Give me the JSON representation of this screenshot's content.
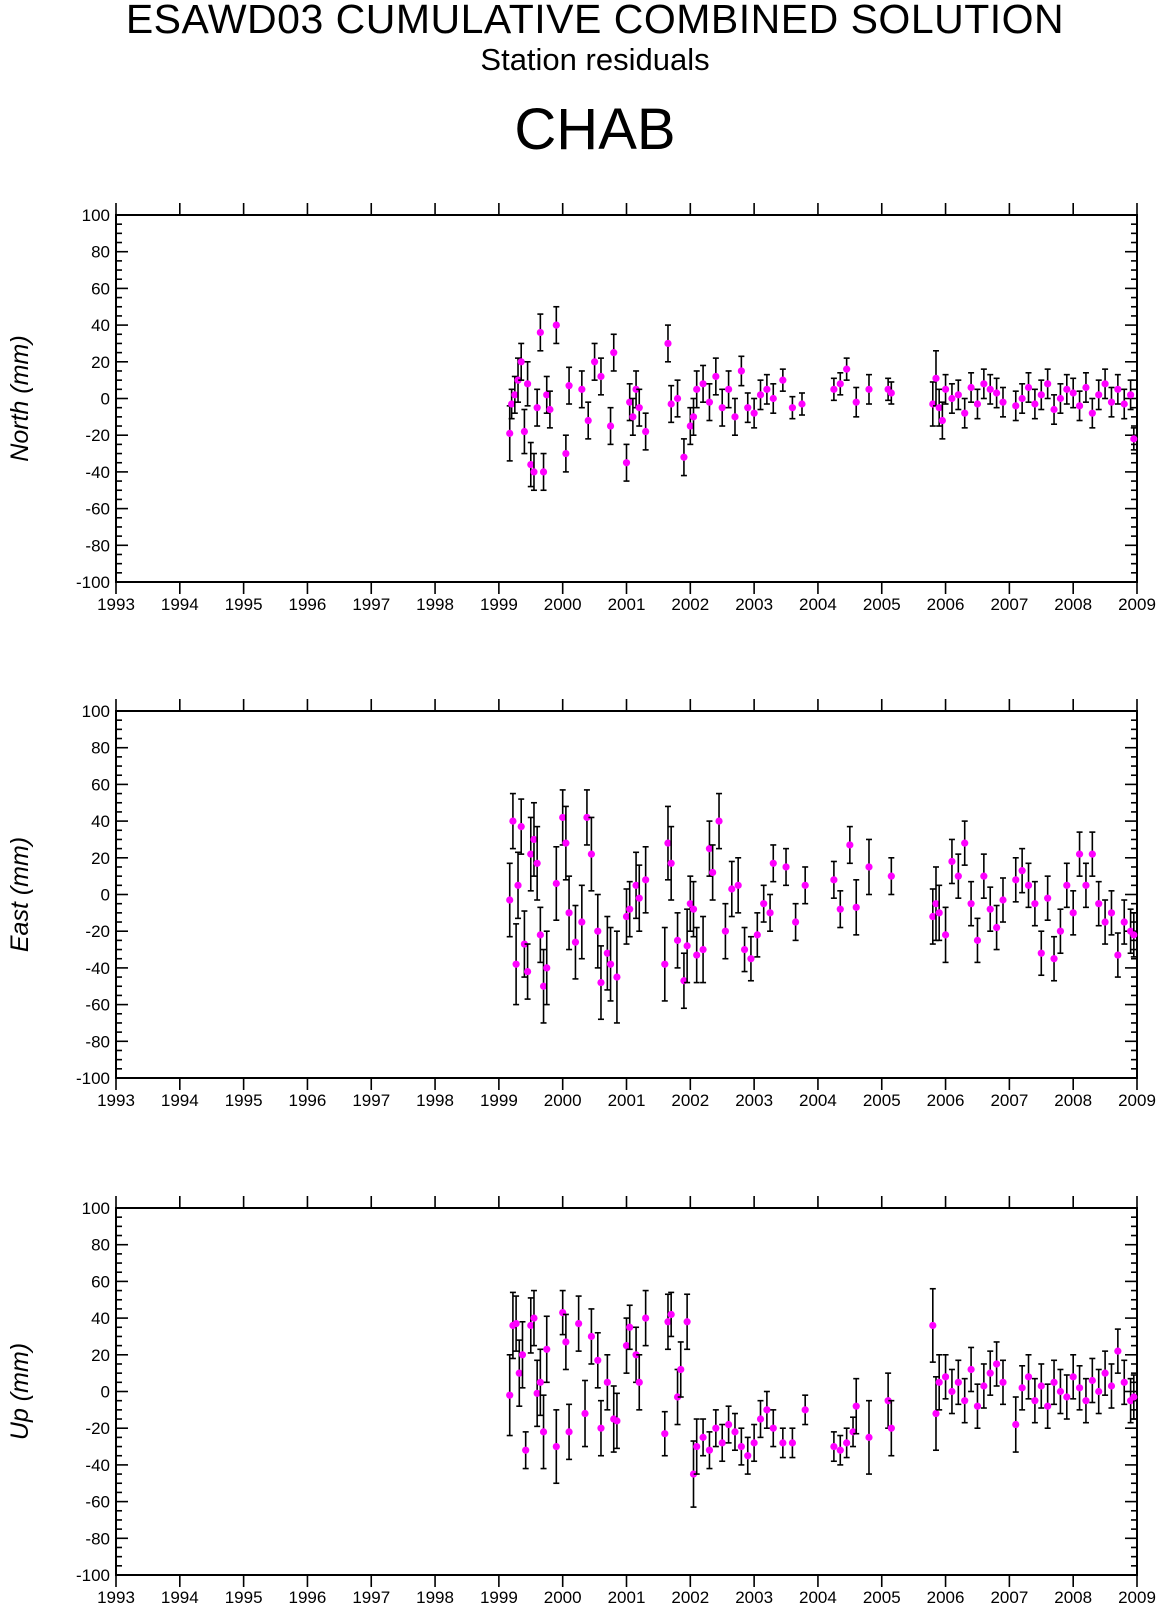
{
  "header": {
    "title": "ESAWD03 CUMULATIVE COMBINED SOLUTION",
    "subtitle": "Station residuals",
    "station": "CHAB"
  },
  "colors": {
    "marker": "#ff00ff",
    "errorbar": "#000000",
    "axis": "#000000"
  },
  "chart_data": [
    {
      "type": "scatter",
      "ylabel": "North (mm)",
      "xlim": [
        1993,
        2009
      ],
      "ylim": [
        -100,
        100
      ],
      "xticks": [
        "1993",
        "1994",
        "1995",
        "1996",
        "1997",
        "1998",
        "1999",
        "2000",
        "2001",
        "2002",
        "2003",
        "2004",
        "2005",
        "2006",
        "2007",
        "2008",
        "2009"
      ],
      "yticks": [
        "100",
        "80",
        "60",
        "40",
        "20",
        "0",
        "-20",
        "-40",
        "-60",
        "-80",
        "-100"
      ],
      "error_bars": true,
      "series": [
        {
          "x": [
            1999.17,
            1999.2,
            1999.25,
            1999.3,
            1999.35,
            1999.4,
            1999.45,
            1999.5,
            1999.55,
            1999.6,
            1999.65,
            1999.7,
            1999.75,
            1999.8,
            1999.9,
            2000.05,
            2000.1,
            2000.3,
            2000.4,
            2000.5,
            2000.6,
            2000.75,
            2000.8,
            2001.0,
            2001.05,
            2001.1,
            2001.15,
            2001.2,
            2001.3,
            2001.65,
            2001.7,
            2001.8,
            2001.9,
            2002.0,
            2002.05,
            2002.1,
            2002.2,
            2002.3,
            2002.4,
            2002.5,
            2002.6,
            2002.7,
            2002.8,
            2002.9,
            2003.0,
            2003.1,
            2003.2,
            2003.3,
            2003.45,
            2003.6,
            2003.75,
            2004.25,
            2004.35,
            2004.45,
            2004.6,
            2004.8,
            2005.1,
            2005.15,
            2005.8,
            2005.85,
            2005.9,
            2005.95,
            2006.0,
            2006.1,
            2006.2,
            2006.3,
            2006.4,
            2006.5,
            2006.6,
            2006.7,
            2006.8,
            2006.9,
            2007.1,
            2007.2,
            2007.3,
            2007.4,
            2007.5,
            2007.6,
            2007.7,
            2007.8,
            2007.9,
            2008.0,
            2008.1,
            2008.2,
            2008.3,
            2008.4,
            2008.5,
            2008.6,
            2008.7,
            2008.8,
            2008.9,
            2008.95
          ],
          "y": [
            -19,
            -3,
            2,
            10,
            20,
            -18,
            8,
            -36,
            -40,
            -5,
            36,
            -40,
            2,
            -6,
            40,
            -30,
            7,
            5,
            -12,
            20,
            12,
            -15,
            25,
            -35,
            -2,
            -10,
            5,
            -5,
            -18,
            30,
            -3,
            0,
            -32,
            -15,
            -10,
            5,
            8,
            -2,
            12,
            -5,
            5,
            -10,
            15,
            -5,
            -8,
            2,
            5,
            0,
            10,
            -5,
            -3,
            5,
            8,
            16,
            -2,
            5,
            5,
            3,
            -3,
            11,
            -5,
            -12,
            5,
            0,
            2,
            -8,
            6,
            -3,
            8,
            5,
            3,
            -2,
            -4,
            0,
            6,
            -3,
            2,
            8,
            -6,
            0,
            5,
            3,
            -4,
            6,
            -8,
            2,
            8,
            -2,
            5,
            -3,
            2,
            -22
          ],
          "err": [
            15,
            8,
            10,
            12,
            10,
            12,
            12,
            12,
            10,
            10,
            10,
            10,
            10,
            10,
            10,
            10,
            10,
            10,
            10,
            10,
            10,
            10,
            10,
            10,
            10,
            10,
            10,
            10,
            10,
            10,
            10,
            10,
            10,
            10,
            10,
            10,
            10,
            10,
            10,
            10,
            10,
            10,
            8,
            8,
            8,
            8,
            8,
            8,
            6,
            6,
            6,
            6,
            6,
            6,
            8,
            8,
            6,
            6,
            12,
            15,
            10,
            10,
            8,
            8,
            8,
            8,
            8,
            8,
            8,
            8,
            8,
            8,
            8,
            8,
            8,
            8,
            8,
            8,
            8,
            8,
            8,
            8,
            8,
            8,
            8,
            8,
            8,
            8,
            8,
            8,
            8,
            6
          ]
        }
      ]
    },
    {
      "type": "scatter",
      "ylabel": "East (mm)",
      "xlim": [
        1993,
        2009
      ],
      "ylim": [
        -100,
        100
      ],
      "xticks": [
        "1993",
        "1994",
        "1995",
        "1996",
        "1997",
        "1998",
        "1999",
        "2000",
        "2001",
        "2002",
        "2003",
        "2004",
        "2005",
        "2006",
        "2007",
        "2008",
        "2009"
      ],
      "yticks": [
        "100",
        "80",
        "60",
        "40",
        "20",
        "0",
        "-20",
        "-40",
        "-60",
        "-80",
        "-100"
      ],
      "error_bars": true,
      "series": [
        {
          "x": [
            1999.17,
            1999.22,
            1999.27,
            1999.3,
            1999.35,
            1999.4,
            1999.45,
            1999.5,
            1999.55,
            1999.6,
            1999.65,
            1999.7,
            1999.75,
            1999.9,
            2000.0,
            2000.05,
            2000.1,
            2000.2,
            2000.3,
            2000.38,
            2000.45,
            2000.55,
            2000.6,
            2000.7,
            2000.75,
            2000.85,
            2001.0,
            2001.05,
            2001.15,
            2001.2,
            2001.3,
            2001.6,
            2001.65,
            2001.7,
            2001.8,
            2001.9,
            2001.95,
            2002.0,
            2002.05,
            2002.1,
            2002.2,
            2002.3,
            2002.35,
            2002.45,
            2002.55,
            2002.65,
            2002.75,
            2002.85,
            2002.95,
            2003.05,
            2003.15,
            2003.25,
            2003.3,
            2003.5,
            2003.65,
            2003.8,
            2004.25,
            2004.35,
            2004.5,
            2004.6,
            2004.8,
            2005.15,
            2005.8,
            2005.85,
            2005.9,
            2006.0,
            2006.1,
            2006.2,
            2006.3,
            2006.4,
            2006.5,
            2006.6,
            2006.7,
            2006.8,
            2006.9,
            2007.1,
            2007.2,
            2007.3,
            2007.4,
            2007.5,
            2007.6,
            2007.7,
            2007.8,
            2007.9,
            2008.0,
            2008.1,
            2008.2,
            2008.3,
            2008.4,
            2008.5,
            2008.6,
            2008.7,
            2008.8,
            2008.9,
            2008.95
          ],
          "y": [
            -3,
            40,
            -38,
            5,
            37,
            -27,
            -42,
            22,
            30,
            17,
            -22,
            -50,
            -40,
            6,
            42,
            28,
            -10,
            -26,
            -15,
            42,
            22,
            -20,
            -48,
            -32,
            -38,
            -45,
            -12,
            -8,
            5,
            -2,
            8,
            -38,
            28,
            17,
            -25,
            -47,
            -28,
            -5,
            -8,
            -33,
            -30,
            25,
            12,
            40,
            -20,
            3,
            5,
            -30,
            -35,
            -22,
            -5,
            -10,
            17,
            15,
            -15,
            5,
            8,
            -8,
            27,
            -7,
            15,
            10,
            -12,
            -5,
            -10,
            -22,
            18,
            10,
            28,
            -5,
            -25,
            10,
            -8,
            -18,
            -3,
            8,
            13,
            5,
            -5,
            -32,
            -2,
            -35,
            -20,
            5,
            -10,
            22,
            5,
            22,
            -5,
            -15,
            -10,
            -33,
            -15,
            -20,
            -22
          ],
          "err": [
            20,
            15,
            22,
            18,
            15,
            18,
            15,
            20,
            20,
            20,
            15,
            20,
            20,
            20,
            15,
            20,
            20,
            20,
            20,
            15,
            20,
            20,
            20,
            20,
            20,
            25,
            15,
            15,
            18,
            18,
            18,
            20,
            20,
            20,
            15,
            15,
            20,
            15,
            15,
            15,
            18,
            15,
            15,
            15,
            15,
            15,
            15,
            12,
            12,
            12,
            10,
            10,
            10,
            10,
            10,
            10,
            10,
            10,
            10,
            15,
            15,
            10,
            15,
            20,
            15,
            15,
            12,
            12,
            12,
            12,
            12,
            12,
            12,
            12,
            12,
            12,
            12,
            12,
            12,
            12,
            12,
            12,
            12,
            12,
            12,
            12,
            12,
            12,
            12,
            12,
            12,
            12,
            12,
            12,
            12
          ]
        }
      ]
    },
    {
      "type": "scatter",
      "ylabel": "Up (mm)",
      "xlim": [
        1993,
        2009
      ],
      "ylim": [
        -100,
        100
      ],
      "xticks": [
        "1993",
        "1994",
        "1995",
        "1996",
        "1997",
        "1998",
        "1999",
        "2000",
        "2001",
        "2002",
        "2003",
        "2004",
        "2005",
        "2006",
        "2007",
        "2008",
        "2009"
      ],
      "yticks": [
        "100",
        "80",
        "60",
        "40",
        "20",
        "0",
        "-20",
        "-40",
        "-60",
        "-80",
        "-100"
      ],
      "error_bars": true,
      "series": [
        {
          "x": [
            1999.17,
            1999.22,
            1999.27,
            1999.32,
            1999.37,
            1999.42,
            1999.5,
            1999.55,
            1999.6,
            1999.65,
            1999.7,
            1999.75,
            1999.9,
            2000.0,
            2000.05,
            2000.1,
            2000.25,
            2000.35,
            2000.45,
            2000.55,
            2000.6,
            2000.7,
            2000.8,
            2000.85,
            2001.0,
            2001.05,
            2001.15,
            2001.2,
            2001.3,
            2001.6,
            2001.65,
            2001.7,
            2001.8,
            2001.85,
            2001.95,
            2002.05,
            2002.1,
            2002.2,
            2002.3,
            2002.4,
            2002.5,
            2002.6,
            2002.7,
            2002.8,
            2002.9,
            2003.0,
            2003.1,
            2003.2,
            2003.3,
            2003.45,
            2003.6,
            2003.8,
            2004.25,
            2004.35,
            2004.45,
            2004.55,
            2004.6,
            2004.8,
            2005.1,
            2005.15,
            2005.8,
            2005.85,
            2005.9,
            2006.0,
            2006.1,
            2006.2,
            2006.3,
            2006.4,
            2006.5,
            2006.6,
            2006.7,
            2006.8,
            2006.9,
            2007.1,
            2007.2,
            2007.3,
            2007.4,
            2007.5,
            2007.6,
            2007.7,
            2007.8,
            2007.9,
            2008.0,
            2008.1,
            2008.2,
            2008.3,
            2008.4,
            2008.5,
            2008.6,
            2008.7,
            2008.8,
            2008.9,
            2008.95
          ],
          "y": [
            -2,
            36,
            37,
            10,
            20,
            -32,
            36,
            40,
            -1,
            5,
            -22,
            23,
            -30,
            43,
            27,
            -22,
            37,
            -12,
            30,
            17,
            -20,
            5,
            -15,
            -16,
            25,
            35,
            20,
            5,
            40,
            -23,
            38,
            42,
            -3,
            12,
            38,
            -45,
            -30,
            -25,
            -32,
            -20,
            -28,
            -18,
            -22,
            -30,
            -35,
            -28,
            -15,
            -10,
            -20,
            -28,
            -28,
            -10,
            -30,
            -32,
            -28,
            -22,
            -8,
            -25,
            -5,
            -20,
            36,
            -12,
            5,
            8,
            0,
            5,
            -5,
            12,
            -8,
            3,
            10,
            15,
            5,
            -18,
            2,
            8,
            -5,
            3,
            -8,
            5,
            0,
            -3,
            8,
            2,
            -5,
            6,
            0,
            10,
            3,
            22,
            5,
            -5,
            -3
          ],
          "err": [
            22,
            18,
            15,
            18,
            18,
            10,
            15,
            15,
            18,
            18,
            20,
            18,
            20,
            12,
            15,
            15,
            15,
            18,
            15,
            15,
            15,
            15,
            18,
            15,
            15,
            12,
            15,
            15,
            15,
            12,
            15,
            12,
            15,
            15,
            15,
            18,
            15,
            10,
            10,
            10,
            10,
            10,
            10,
            10,
            10,
            10,
            10,
            10,
            10,
            8,
            8,
            8,
            8,
            8,
            8,
            8,
            15,
            20,
            15,
            15,
            20,
            20,
            15,
            12,
            12,
            12,
            12,
            12,
            12,
            12,
            12,
            12,
            12,
            15,
            12,
            12,
            12,
            12,
            12,
            12,
            12,
            12,
            12,
            12,
            12,
            12,
            12,
            12,
            12,
            12,
            12,
            12,
            12
          ]
        }
      ]
    }
  ]
}
